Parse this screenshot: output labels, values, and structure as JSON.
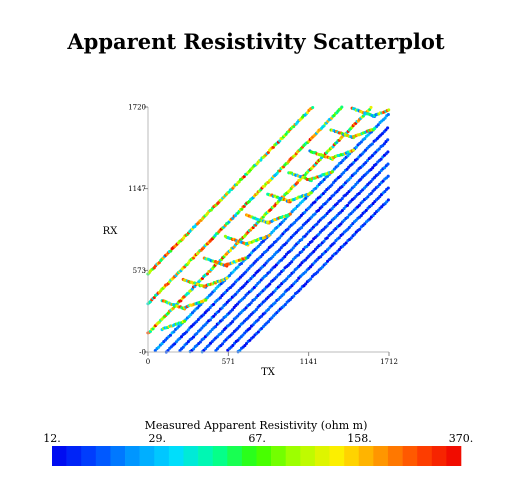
{
  "chart_data": {
    "type": "scatter",
    "title": "Apparent Resistivity Scatterplot",
    "xlabel": "TX",
    "ylabel": "RX",
    "xlim": [
      0,
      1712
    ],
    "ylim": [
      0,
      1720
    ],
    "x_ticks": [
      {
        "value": 0,
        "label": "0"
      },
      {
        "value": 571,
        "label": "571"
      },
      {
        "value": 1141,
        "label": "1141"
      },
      {
        "value": 1712,
        "label": "1712"
      }
    ],
    "y_ticks": [
      {
        "value": 0,
        "label": "-0"
      },
      {
        "value": 573,
        "label": "573"
      },
      {
        "value": 1147,
        "label": "1147"
      },
      {
        "value": 1720,
        "label": "1720"
      }
    ],
    "colorbar": {
      "title": "Measured Apparent Resistivity (ohm m)",
      "scale": "log",
      "range": [
        12,
        370
      ],
      "tick_labels": [
        "12.",
        "29.",
        "67.",
        "158.",
        "370."
      ],
      "tick_values": [
        12,
        29,
        67,
        158,
        370
      ],
      "colors": [
        "#0000ee",
        "#0044ff",
        "#0099ff",
        "#00ddff",
        "#00ff99",
        "#33ff00",
        "#aaff00",
        "#ffee00",
        "#ff9900",
        "#ff4400",
        "#ee0000"
      ]
    },
    "series": [
      {
        "bands": [
          {
            "offset": 40,
            "rho_min": 15,
            "rho_max": 30
          },
          {
            "offset": 130,
            "rho_min": 12,
            "rho_max": 22
          },
          {
            "offset": 215,
            "rho_min": 12,
            "rho_max": 22
          },
          {
            "offset": 300,
            "rho_min": 12,
            "rho_max": 22
          },
          {
            "offset": 385,
            "rho_min": 12,
            "rho_max": 22
          },
          {
            "offset": 470,
            "rho_min": 12,
            "rho_max": 22
          },
          {
            "offset": 555,
            "rho_min": 12,
            "rho_max": 22
          },
          {
            "offset": 640,
            "rho_min": 12,
            "rho_max": 22
          }
        ]
      },
      {
        "lobes": {
          "offsets": [
            -130,
            -340,
            -550
          ],
          "rho_min": 25,
          "rho_max": 370
        }
      }
    ]
  }
}
